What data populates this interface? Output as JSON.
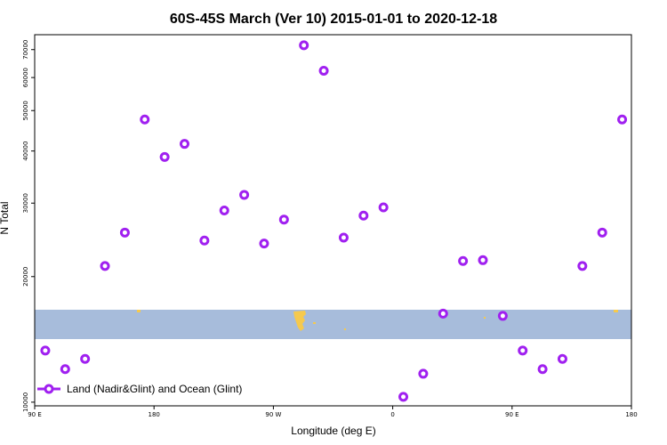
{
  "chart_data": {
    "type": "scatter",
    "title": "60S-45S March (Ver 10)   2015-01-01 to 2020-12-18",
    "xlabel": "Longitude (deg E)",
    "ylabel": "N Total",
    "y_scale": "log",
    "ylim": [
      9800,
      76000
    ],
    "x_ticks": [
      {
        "value": 90,
        "label": "90 E"
      },
      {
        "value": 180,
        "label": "180"
      },
      {
        "value": 270,
        "label": "90 W"
      },
      {
        "value": 360,
        "label": "0"
      },
      {
        "value": 450,
        "label": "90 E"
      },
      {
        "value": 540,
        "label": "180"
      }
    ],
    "xlim": [
      90,
      540
    ],
    "y_ticks": [
      10000,
      20000,
      30000,
      40000,
      50000,
      60000,
      70000
    ],
    "grid": false,
    "legend_position": "bottom-left",
    "colors": {
      "series": "#a020f0",
      "ocean": "#a7bcdb",
      "land": "#f5c94e"
    },
    "series": [
      {
        "name": "Land (Nadir&Glint) and Ocean (Glint)",
        "x": [
          98,
          113,
          128,
          143,
          158,
          173,
          188,
          203,
          218,
          233,
          248,
          263,
          278,
          293,
          308,
          323,
          338,
          353,
          368,
          383,
          398,
          413,
          428,
          443,
          458,
          473,
          488,
          503,
          518,
          533
        ],
        "y": [
          13300,
          12000,
          12700,
          21200,
          25500,
          47600,
          38700,
          41600,
          24400,
          28800,
          31400,
          24000,
          27400,
          71700,
          62300,
          24800,
          28000,
          29300,
          10300,
          11700,
          16300,
          21800,
          21900,
          16100,
          13300,
          12000,
          12700,
          21200,
          25500,
          47600
        ]
      }
    ]
  }
}
